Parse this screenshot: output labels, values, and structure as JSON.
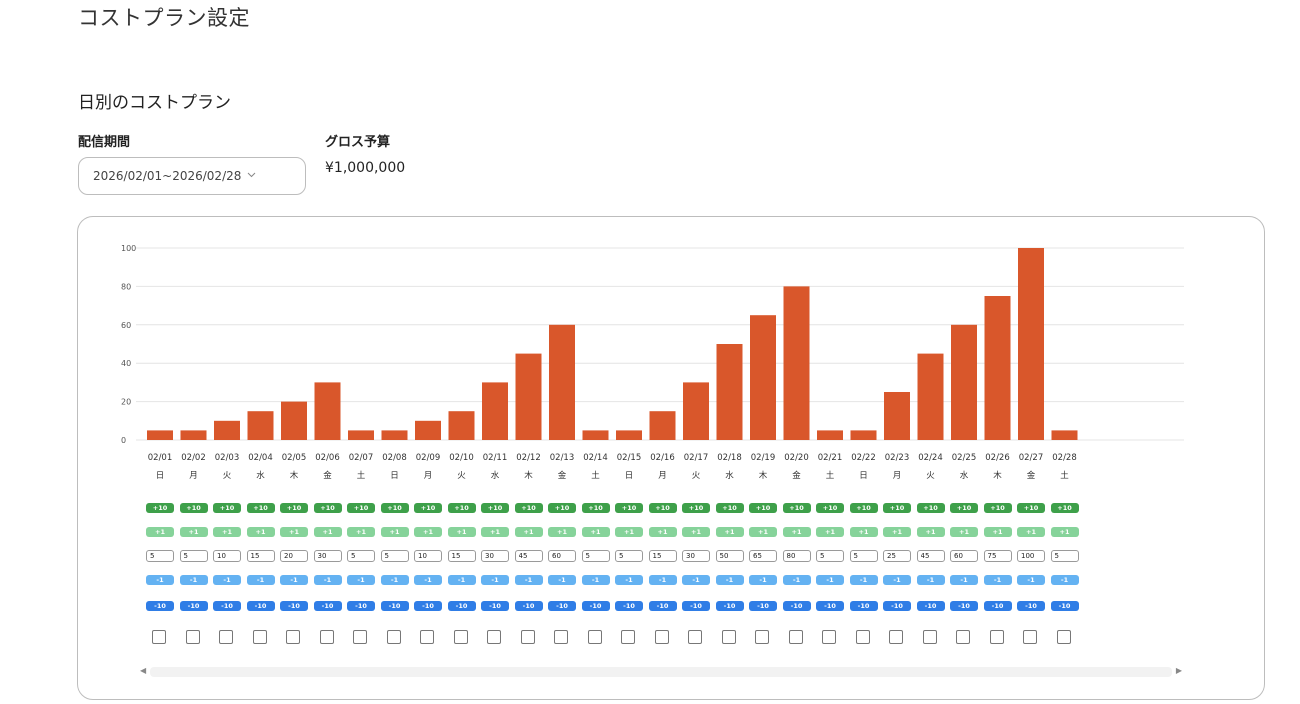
{
  "page": {
    "title": "コストプラン設定"
  },
  "section": {
    "title": "日別のコストプラン"
  },
  "period": {
    "label": "配信期間",
    "value": "2026/02/01~2026/02/28",
    "chevron_icon": "chevron-down-icon"
  },
  "budget": {
    "label": "グロス予算",
    "value": "¥1,000,000"
  },
  "colors": {
    "bar": "#d9572b",
    "plus10": "#3ea04a",
    "plus1": "#86d39a",
    "minus1": "#64b2f2",
    "minus10": "#2f7de6"
  },
  "controls": {
    "plus10_label": "+10",
    "plus1_label": "+1",
    "minus1_label": "-1",
    "minus10_label": "-10"
  },
  "chart_data": {
    "type": "bar",
    "categories": [
      "02/01",
      "02/02",
      "02/03",
      "02/04",
      "02/05",
      "02/06",
      "02/07",
      "02/08",
      "02/09",
      "02/10",
      "02/11",
      "02/12",
      "02/13",
      "02/14",
      "02/15",
      "02/16",
      "02/17",
      "02/18",
      "02/19",
      "02/20",
      "02/21",
      "02/22",
      "02/23",
      "02/24",
      "02/25",
      "02/26",
      "02/27",
      "02/28"
    ],
    "weekdays": [
      "日",
      "月",
      "火",
      "水",
      "木",
      "金",
      "土",
      "日",
      "月",
      "火",
      "水",
      "木",
      "金",
      "土",
      "日",
      "月",
      "火",
      "水",
      "木",
      "金",
      "土",
      "日",
      "月",
      "火",
      "水",
      "木",
      "金",
      "土"
    ],
    "values": [
      5,
      5,
      10,
      15,
      20,
      30,
      5,
      5,
      10,
      15,
      30,
      45,
      60,
      5,
      5,
      15,
      30,
      50,
      65,
      80,
      5,
      5,
      25,
      45,
      60,
      75,
      100,
      5
    ],
    "yticks": [
      0,
      20,
      40,
      60,
      80,
      100
    ],
    "ylim": [
      0,
      100
    ],
    "grid": true
  }
}
